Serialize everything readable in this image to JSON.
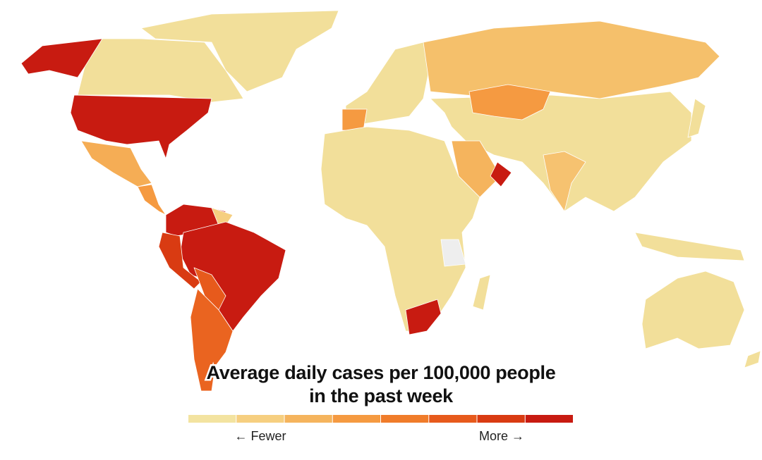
{
  "legend": {
    "title_lines": [
      "Average daily cases per 100,000 people",
      "in the past week"
    ],
    "colors": [
      "#f3e3a0",
      "#f6cf80",
      "#f5b45d",
      "#f59a41",
      "#f07c2a",
      "#e75a1c",
      "#d93b12",
      "#c81b11"
    ],
    "low_label": "← Fewer",
    "high_label": "More →"
  }
}
